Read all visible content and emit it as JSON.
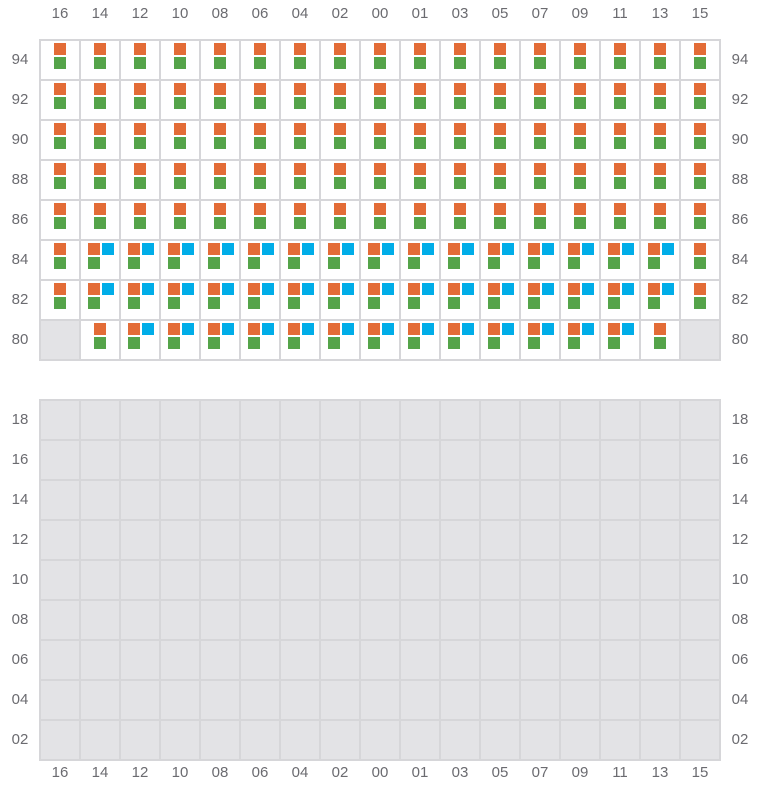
{
  "colors": {
    "orange": "#e36c37",
    "green": "#55a44a",
    "blue": "#00ade8",
    "empty": "#e3e3e6",
    "grid": "#d6d6d9"
  },
  "columns": [
    "16",
    "14",
    "12",
    "10",
    "08",
    "06",
    "04",
    "02",
    "00",
    "01",
    "03",
    "05",
    "07",
    "09",
    "11",
    "13",
    "15"
  ],
  "upper_section": {
    "rows": [
      {
        "label": "94",
        "cells": [
          "og",
          "og",
          "og",
          "og",
          "og",
          "og",
          "og",
          "og",
          "og",
          "og",
          "og",
          "og",
          "og",
          "og",
          "og",
          "og",
          "og"
        ]
      },
      {
        "label": "92",
        "cells": [
          "og",
          "og",
          "og",
          "og",
          "og",
          "og",
          "og",
          "og",
          "og",
          "og",
          "og",
          "og",
          "og",
          "og",
          "og",
          "og",
          "og"
        ]
      },
      {
        "label": "90",
        "cells": [
          "og",
          "og",
          "og",
          "og",
          "og",
          "og",
          "og",
          "og",
          "og",
          "og",
          "og",
          "og",
          "og",
          "og",
          "og",
          "og",
          "og"
        ]
      },
      {
        "label": "88",
        "cells": [
          "og",
          "og",
          "og",
          "og",
          "og",
          "og",
          "og",
          "og",
          "og",
          "og",
          "og",
          "og",
          "og",
          "og",
          "og",
          "og",
          "og"
        ]
      },
      {
        "label": "86",
        "cells": [
          "og",
          "og",
          "og",
          "og",
          "og",
          "og",
          "og",
          "og",
          "og",
          "og",
          "og",
          "og",
          "og",
          "og",
          "og",
          "og",
          "og"
        ]
      },
      {
        "label": "84",
        "cells": [
          "og",
          "ogb",
          "ogb",
          "ogb",
          "ogb",
          "ogb",
          "ogb",
          "ogb",
          "ogb",
          "ogb",
          "ogb",
          "ogb",
          "ogb",
          "ogb",
          "ogb",
          "ogb",
          "og"
        ]
      },
      {
        "label": "82",
        "cells": [
          "og",
          "ogb",
          "ogb",
          "ogb",
          "ogb",
          "ogb",
          "ogb",
          "ogb",
          "ogb",
          "ogb",
          "ogb",
          "ogb",
          "ogb",
          "ogb",
          "ogb",
          "ogb",
          "og"
        ]
      },
      {
        "label": "80",
        "cells": [
          "e",
          "og",
          "ogb",
          "ogb",
          "ogb",
          "ogb",
          "ogb",
          "ogb",
          "ogb",
          "ogb",
          "ogb",
          "ogb",
          "ogb",
          "ogb",
          "ogb",
          "og",
          "e"
        ]
      }
    ]
  },
  "lower_section": {
    "rows": [
      {
        "label": "18",
        "cells": [
          "e",
          "e",
          "e",
          "e",
          "e",
          "e",
          "e",
          "e",
          "e",
          "e",
          "e",
          "e",
          "e",
          "e",
          "e",
          "e",
          "e"
        ]
      },
      {
        "label": "16",
        "cells": [
          "e",
          "e",
          "e",
          "e",
          "e",
          "e",
          "e",
          "e",
          "e",
          "e",
          "e",
          "e",
          "e",
          "e",
          "e",
          "e",
          "e"
        ]
      },
      {
        "label": "14",
        "cells": [
          "e",
          "e",
          "e",
          "e",
          "e",
          "e",
          "e",
          "e",
          "e",
          "e",
          "e",
          "e",
          "e",
          "e",
          "e",
          "e",
          "e"
        ]
      },
      {
        "label": "12",
        "cells": [
          "e",
          "e",
          "e",
          "e",
          "e",
          "e",
          "e",
          "e",
          "e",
          "e",
          "e",
          "e",
          "e",
          "e",
          "e",
          "e",
          "e"
        ]
      },
      {
        "label": "10",
        "cells": [
          "e",
          "e",
          "e",
          "e",
          "e",
          "e",
          "e",
          "e",
          "e",
          "e",
          "e",
          "e",
          "e",
          "e",
          "e",
          "e",
          "e"
        ]
      },
      {
        "label": "08",
        "cells": [
          "e",
          "e",
          "e",
          "e",
          "e",
          "e",
          "e",
          "e",
          "e",
          "e",
          "e",
          "e",
          "e",
          "e",
          "e",
          "e",
          "e"
        ]
      },
      {
        "label": "06",
        "cells": [
          "e",
          "e",
          "e",
          "e",
          "e",
          "e",
          "e",
          "e",
          "e",
          "e",
          "e",
          "e",
          "e",
          "e",
          "e",
          "e",
          "e"
        ]
      },
      {
        "label": "04",
        "cells": [
          "e",
          "e",
          "e",
          "e",
          "e",
          "e",
          "e",
          "e",
          "e",
          "e",
          "e",
          "e",
          "e",
          "e",
          "e",
          "e",
          "e"
        ]
      },
      {
        "label": "02",
        "cells": [
          "e",
          "e",
          "e",
          "e",
          "e",
          "e",
          "e",
          "e",
          "e",
          "e",
          "e",
          "e",
          "e",
          "e",
          "e",
          "e",
          "e"
        ]
      }
    ]
  }
}
